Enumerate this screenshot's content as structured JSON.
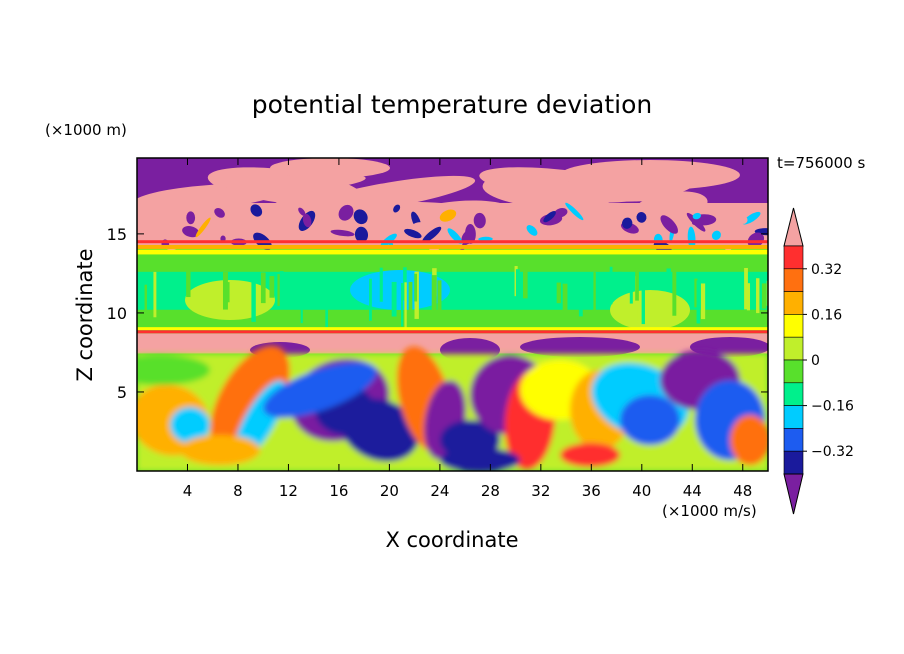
{
  "chart_data": {
    "type": "heatmap",
    "title": "potential temperature deviation",
    "time_label": "t=756000 s",
    "xlabel": "X coordinate",
    "ylabel": "Z coordinate",
    "x_unit": "(×1000 m/s)",
    "y_unit": "(×1000 m)",
    "xlim": [
      0,
      50
    ],
    "ylim": [
      0,
      19.8
    ],
    "x_ticks": [
      4,
      8,
      12,
      16,
      20,
      24,
      28,
      32,
      36,
      40,
      44,
      48
    ],
    "y_ticks": [
      5,
      10,
      15
    ],
    "colorbar": {
      "levels": [
        -0.48,
        -0.4,
        -0.32,
        -0.24,
        -0.16,
        -0.08,
        0,
        0.08,
        0.16,
        0.24,
        0.32,
        0.4,
        0.48
      ],
      "tick_labels": [
        "0.32",
        "0.16",
        "0",
        "−0.16",
        "−0.32"
      ],
      "tick_values": [
        0.32,
        0.16,
        0,
        -0.16,
        -0.32
      ],
      "colors": [
        "#7a1fa0",
        "#1a1a9c",
        "#1d5cf0",
        "#00ccff",
        "#00f08c",
        "#58e02c",
        "#c0ef2b",
        "#ffff00",
        "#ffb000",
        "#ff7010",
        "#ff2f2f",
        "#f4a2a2"
      ],
      "extend": "both"
    },
    "field_description": "2-D potential temperature deviation field on X–Z grid"
  }
}
